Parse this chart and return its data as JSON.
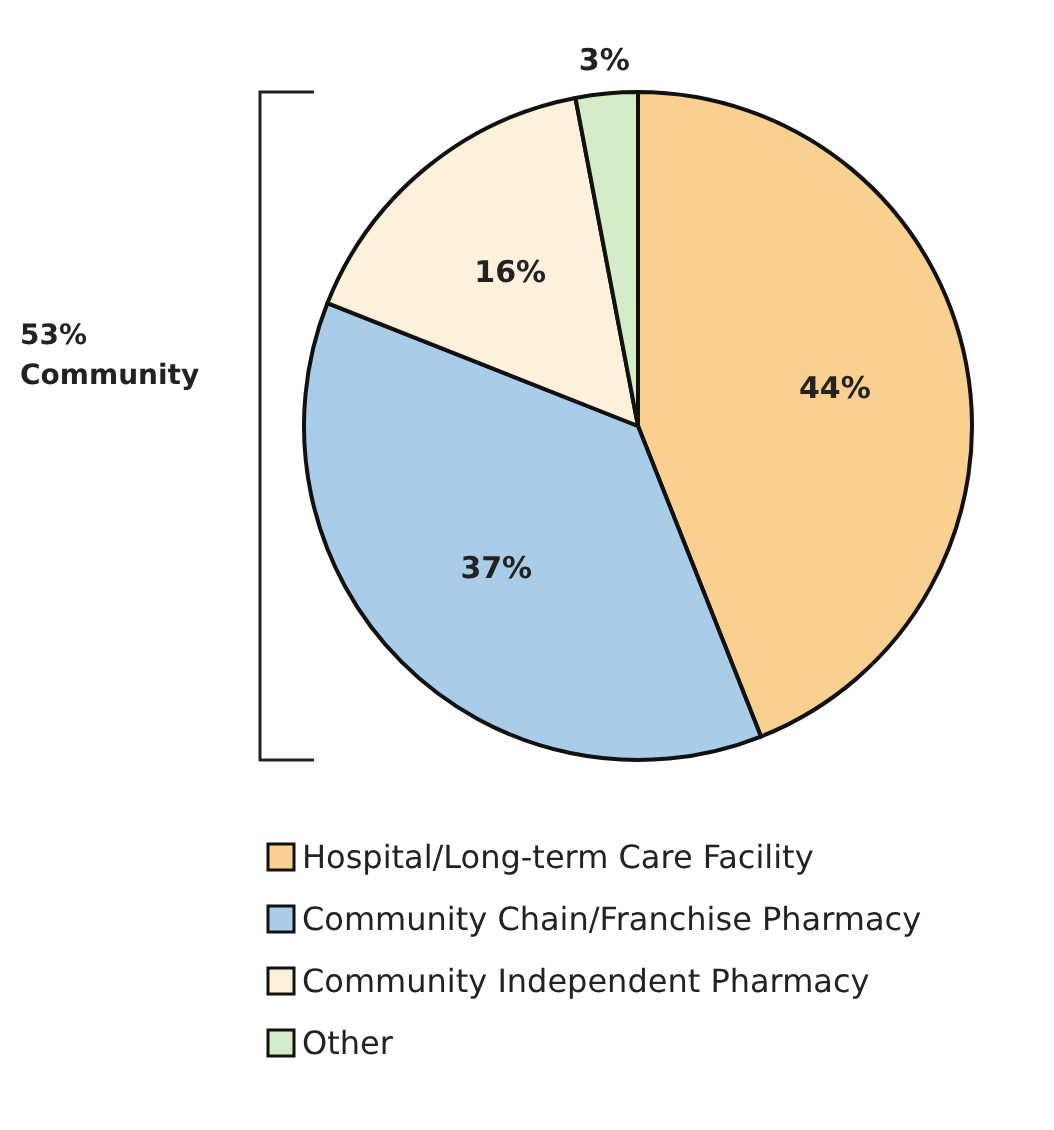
{
  "chart_data": {
    "type": "pie",
    "categories": [
      "Hospital/Long-term Care Facility",
      "Community Chain/Franchise Pharmacy",
      "Community Independent Pharmacy",
      "Other"
    ],
    "values": [
      44,
      37,
      16,
      3
    ],
    "colors": [
      "#f9d08f",
      "#a9cde9",
      "#fdf1dc",
      "#d5ecc9"
    ],
    "value_labels": [
      "44%",
      "37%",
      "16%",
      "3%"
    ],
    "annotations": [
      "53% Community"
    ],
    "legend": "bottom"
  }
}
